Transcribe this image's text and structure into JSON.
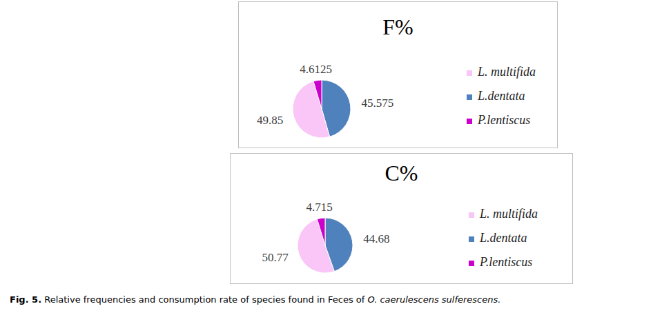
{
  "caption": {
    "label": "Fig. 5.",
    "text": "Relative frequencies and consumption rate of species found in Feces of",
    "species": "O. caerulescens sulferescens."
  },
  "chart_data": [
    {
      "type": "pie",
      "title": "F%",
      "categories": [
        "L.dentata",
        "L. multifida",
        "P.lentiscus"
      ],
      "values": [
        45.575,
        49.85,
        4.6125
      ],
      "colors": [
        "#4f81bd",
        "#f9c6f7",
        "#cc00cc"
      ],
      "data_labels": true,
      "legend": "right"
    },
    {
      "type": "pie",
      "title": "C%",
      "categories": [
        "L.dentata",
        "L. multifida",
        "P.lentiscus"
      ],
      "values": [
        44.68,
        50.77,
        4.715
      ],
      "colors": [
        "#4f81bd",
        "#f9c6f7",
        "#cc00cc"
      ],
      "data_labels": true,
      "legend": "right"
    }
  ]
}
